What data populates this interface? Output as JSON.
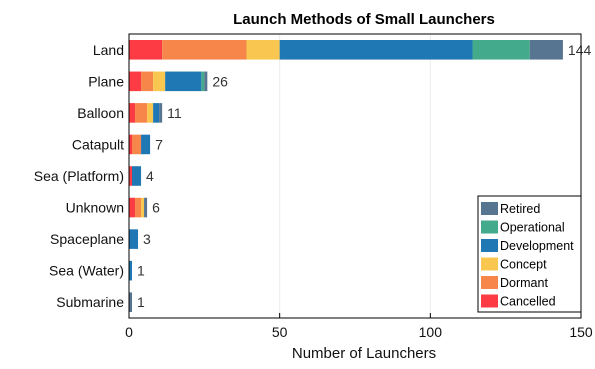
{
  "chart_data": {
    "type": "bar",
    "orientation": "horizontal",
    "stacked": true,
    "title": "Launch Methods of Small Launchers",
    "xlabel": "Number of Launchers",
    "ylabel": "",
    "xlim": [
      0,
      150
    ],
    "xticks": [
      0,
      50,
      100,
      150
    ],
    "grid": true,
    "legend_position": "bottom-right",
    "categories": [
      "Land",
      "Plane",
      "Balloon",
      "Catapult",
      "Sea (Platform)",
      "Unknown",
      "Spaceplane",
      "Sea (Water)",
      "Submarine"
    ],
    "totals": [
      144,
      26,
      11,
      7,
      4,
      6,
      3,
      1,
      1
    ],
    "series": [
      {
        "name": "Cancelled",
        "color": "#fc3b45",
        "values": [
          11,
          4,
          2,
          1,
          1,
          2,
          0,
          0,
          0
        ]
      },
      {
        "name": "Dormant",
        "color": "#f7864a",
        "values": [
          28,
          4,
          4,
          3,
          0,
          2,
          0,
          0,
          0
        ]
      },
      {
        "name": "Concept",
        "color": "#f9c74f",
        "values": [
          11,
          4,
          2,
          0,
          0,
          1,
          0,
          0,
          0
        ]
      },
      {
        "name": "Development",
        "color": "#1f77b4",
        "values": [
          64,
          12,
          2,
          3,
          3,
          0,
          3,
          1,
          0
        ]
      },
      {
        "name": "Operational",
        "color": "#43aa8b",
        "values": [
          19,
          1,
          0,
          0,
          0,
          0,
          0,
          0,
          0
        ]
      },
      {
        "name": "Retired",
        "color": "#577590",
        "values": [
          11,
          1,
          1,
          0,
          0,
          1,
          0,
          0,
          1
        ]
      }
    ],
    "legend_order": [
      "Retired",
      "Operational",
      "Development",
      "Concept",
      "Dormant",
      "Cancelled"
    ]
  }
}
